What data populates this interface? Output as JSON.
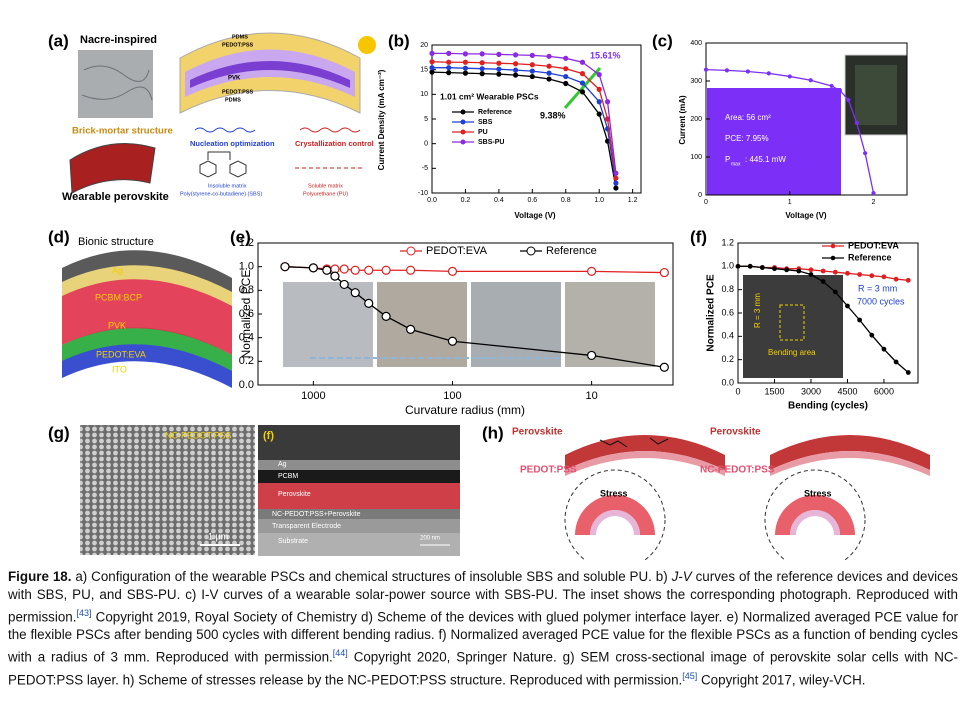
{
  "panel_a": {
    "label": "(a)",
    "title": "Nacre-inspired",
    "structure": "Brick-mortar structure",
    "device": "Wearable perovskite",
    "layers": [
      "PDMS",
      "PEDOT:PSS",
      "PVK",
      "PEDOT:PSS",
      "PDMS"
    ],
    "nucleation": "Nucleation optimization",
    "crystallization": "Crystallization control",
    "insoluble": "Insoluble matrix",
    "sbs": "Poly(styrene-co-butadiene) (SBS)",
    "soluble": "Soluble matrix",
    "pu": "Polyurethane (PU)"
  },
  "chart_data": [
    {
      "type": "line",
      "label": "(b)",
      "xlabel": "Voltage (V)",
      "ylabel": "Current Density (mA cm⁻²)",
      "x": [
        0,
        0.1,
        0.2,
        0.3,
        0.4,
        0.5,
        0.6,
        0.7,
        0.8,
        0.9,
        1.0,
        1.05,
        1.1
      ],
      "series": [
        {
          "name": "Reference",
          "color": "#000000",
          "values": [
            14.5,
            14.4,
            14.3,
            14.2,
            14.1,
            13.9,
            13.6,
            13.1,
            12.2,
            10.5,
            6,
            0.5,
            -9
          ]
        },
        {
          "name": "SBS",
          "color": "#1f3fd6",
          "values": [
            15.4,
            15.4,
            15.3,
            15.2,
            15.1,
            14.9,
            14.7,
            14.3,
            13.6,
            12.3,
            8.5,
            3,
            -8
          ]
        },
        {
          "name": "PU",
          "color": "#e02020",
          "values": [
            16.6,
            16.5,
            16.5,
            16.4,
            16.3,
            16.2,
            16.0,
            15.7,
            15.2,
            14.2,
            11,
            5,
            -7
          ]
        },
        {
          "name": "SBS-PU",
          "color": "#8a2be2",
          "values": [
            18.3,
            18.3,
            18.2,
            18.2,
            18.1,
            18.0,
            17.9,
            17.7,
            17.3,
            16.5,
            14,
            8.5,
            -6
          ]
        }
      ],
      "xlim": [
        0,
        1.25
      ],
      "ylim": [
        -10,
        20
      ],
      "xticks": [
        {
          "value": 0,
          "label": "0.0"
        },
        0.2,
        0.4,
        0.6,
        0.8,
        {
          "value": 1,
          "label": "1.0"
        },
        1.2
      ],
      "yticks": [
        -10,
        -5,
        0,
        5,
        10,
        15,
        20
      ],
      "annotations": [
        "1.01 cm² Wearable PSCs",
        "9.38%",
        "15.61%"
      ]
    },
    {
      "type": "line",
      "label": "(c)",
      "xlabel": "Voltage (V)",
      "ylabel": "Current (mA)",
      "x": [
        0,
        0.25,
        0.5,
        0.75,
        1.0,
        1.25,
        1.5,
        1.6,
        1.7,
        1.8,
        1.9,
        2.0
      ],
      "series": [
        {
          "name": null,
          "color": "#7b2ff7",
          "values": [
            330,
            328,
            325,
            320,
            312,
            302,
            287,
            275,
            250,
            190,
            110,
            5
          ]
        }
      ],
      "xlim": [
        0,
        2.4
      ],
      "ylim": [
        0,
        400
      ],
      "xticks": [
        0,
        1,
        2
      ],
      "yticks": [
        0,
        100,
        200,
        300,
        400
      ],
      "annotations": [
        "Area: 56 cm²",
        "PCE: 7.95%",
        "P",
        "max",
        ": 445.1 mW"
      ]
    },
    {
      "type": "line",
      "label": "(e)",
      "xlabel": "Curvature radius (mm)",
      "ylabel": "Normalized PCE",
      "xlog": true,
      "x": [
        1600,
        1000,
        800,
        700,
        600,
        500,
        400,
        300,
        200,
        100,
        10,
        3
      ],
      "series": [
        {
          "name": "PEDOT:EVA",
          "color": "#e02020",
          "values": [
            1.0,
            0.99,
            0.98,
            0.98,
            0.98,
            0.97,
            0.97,
            0.97,
            0.97,
            0.96,
            0.96,
            0.95
          ]
        },
        {
          "name": "Reference",
          "color": "#000000",
          "values": [
            1.0,
            0.99,
            0.97,
            0.92,
            0.85,
            0.78,
            0.69,
            0.58,
            0.47,
            0.37,
            0.25,
            0.15
          ]
        }
      ],
      "xlim": [
        2500,
        2.6
      ],
      "ylim": [
        0,
        1.2
      ],
      "xticks": [
        1000,
        100,
        10
      ],
      "yticks": [
        {
          "value": 0,
          "label": "0.0"
        },
        0.2,
        0.4,
        0.6,
        0.8,
        {
          "value": 1,
          "label": "1.0"
        },
        1.2
      ],
      "annotations": []
    },
    {
      "type": "line",
      "label": "(f)",
      "xlabel": "Bending (cycles)",
      "ylabel": "Normalized PCE",
      "x": [
        0,
        500,
        1000,
        1500,
        2000,
        2500,
        3000,
        3500,
        4000,
        4500,
        5000,
        5500,
        6000,
        6500,
        7000
      ],
      "series": [
        {
          "name": "PEDOT:EVA",
          "color": "#e02020",
          "values": [
            1.0,
            1.0,
            0.99,
            0.99,
            0.98,
            0.98,
            0.97,
            0.96,
            0.95,
            0.94,
            0.93,
            0.92,
            0.91,
            0.89,
            0.88
          ]
        },
        {
          "name": "Reference",
          "color": "#000000",
          "values": [
            1.0,
            1.0,
            0.99,
            0.98,
            0.97,
            0.96,
            0.93,
            0.87,
            0.78,
            0.66,
            0.54,
            0.41,
            0.29,
            0.18,
            0.09
          ]
        }
      ],
      "xlim": [
        0,
        7400
      ],
      "ylim": [
        0,
        1.2
      ],
      "xticks": [
        0,
        1500,
        3000,
        4500,
        6000
      ],
      "yticks": [
        {
          "value": 0,
          "label": "0.0"
        },
        0.2,
        0.4,
        0.6,
        0.8,
        {
          "value": 1,
          "label": "1.0"
        },
        1.2
      ],
      "annotations": [
        "R = 3 mm",
        "7000 cycles",
        "R = 3 mm",
        "Bending area"
      ]
    }
  ],
  "panel_d": {
    "label": "(d)",
    "title": "Bionic structure",
    "layers": [
      "Ag",
      "PCBM:BCP",
      "PVK",
      "PEDOT:EVA",
      "ITO"
    ]
  },
  "panel_g": {
    "label": "(g)",
    "material": "NC-PEDOT:PSS",
    "scale": "1 μm"
  },
  "panel_sem": {
    "label": "(f)",
    "layers": [
      "Ag",
      "PCBM",
      "Perovskite",
      "NC-PEDOT:PSS+Perovskite",
      "Transparent Electrode",
      "Substrate"
    ],
    "scale": "200 nm"
  },
  "panel_h": {
    "label": "(h)",
    "left": {
      "top": "Perovskite",
      "bottom": "PEDOT:PSS",
      "stress": "Stress"
    },
    "right": {
      "top": "Perovskite",
      "bottom": "NC-PEDOT:PSS",
      "stress": "Stress"
    }
  },
  "caption": {
    "label": "Figure 18.",
    "t1": " a) Configuration of the wearable PSCs and chemical structures of insoluble SBS and soluble PU. b) ",
    "em": "J-V",
    "t2": " curves of the reference devices and devices with SBS, PU, and SBS-PU. c) I-V curves of a wearable solar-power source with SBS-PU. The inset shows the corresponding photograph. Reproduced with permission.",
    "ref1": "[43]",
    "t3": " Copyright 2019, Royal Society of Chemistry d) Scheme of the devices with glued polymer interface layer. e) Normalized averaged PCE value for the flexible PSCs after bending 500 cycles with different bending radius. f) Normalized averaged PCE value for the flexible PSCs as a function of bending cycles with a radius of 3 mm. Reproduced with permission.",
    "ref2": "[44]",
    "t4": " Copyright 2020, Springer Nature. g) SEM cross-sectional image of perovskite solar cells with NC-PEDOT:PSS layer. h) Scheme of stresses release by the NC-PEDOT:PSS structure. Reproduced with permission.",
    "ref3": "[45]",
    "t5": " Copyright 2017, wiley-VCH."
  }
}
